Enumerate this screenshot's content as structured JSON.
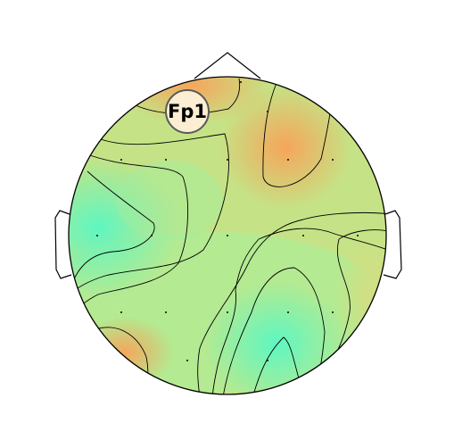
{
  "topomap": {
    "highlight_label": "Fp1",
    "colors": {
      "warm": "#f4a85a",
      "mid": "#c8e285",
      "cool": "#66f5b9",
      "outline": "#000000",
      "highlight_fill": "#fbeed2",
      "highlight_stroke": "#5a5a5a"
    }
  }
}
